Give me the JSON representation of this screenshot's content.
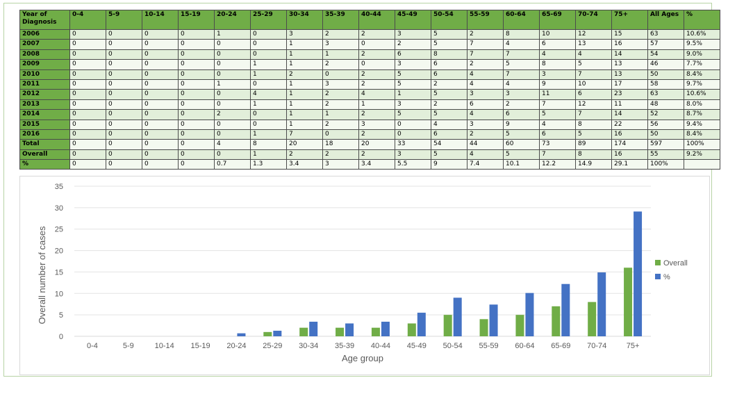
{
  "table": {
    "headers": [
      "Year of Diagnosis",
      "0-4",
      "5-9",
      "10-14",
      "15-19",
      "20-24",
      "25-29",
      "30-34",
      "35-39",
      "40-44",
      "45-49",
      "50-54",
      "55-59",
      "60-64",
      "65-69",
      "70-74",
      "75+",
      "All Ages",
      "%"
    ],
    "rows": [
      [
        "2006",
        "0",
        "0",
        "0",
        "0",
        "1",
        "0",
        "3",
        "2",
        "2",
        "3",
        "5",
        "2",
        "8",
        "10",
        "12",
        "15",
        "63",
        "10.6%"
      ],
      [
        "2007",
        "0",
        "0",
        "0",
        "0",
        "0",
        "0",
        "1",
        "3",
        "0",
        "2",
        "5",
        "7",
        "4",
        "6",
        "13",
        "16",
        "57",
        "9.5%"
      ],
      [
        "2008",
        "0",
        "0",
        "0",
        "0",
        "0",
        "0",
        "1",
        "1",
        "2",
        "6",
        "8",
        "7",
        "7",
        "4",
        "4",
        "14",
        "54",
        "9.0%"
      ],
      [
        "2009",
        "0",
        "0",
        "0",
        "0",
        "0",
        "1",
        "1",
        "2",
        "0",
        "3",
        "6",
        "2",
        "5",
        "8",
        "5",
        "13",
        "46",
        "7.7%"
      ],
      [
        "2010",
        "0",
        "0",
        "0",
        "0",
        "0",
        "1",
        "2",
        "0",
        "2",
        "5",
        "6",
        "4",
        "7",
        "3",
        "7",
        "13",
        "50",
        "8.4%"
      ],
      [
        "2011",
        "0",
        "0",
        "0",
        "0",
        "1",
        "0",
        "1",
        "3",
        "2",
        "5",
        "2",
        "4",
        "4",
        "9",
        "10",
        "17",
        "58",
        "9.7%"
      ],
      [
        "2012",
        "0",
        "0",
        "0",
        "0",
        "0",
        "4",
        "1",
        "2",
        "4",
        "1",
        "5",
        "3",
        "3",
        "11",
        "6",
        "23",
        "63",
        "10.6%"
      ],
      [
        "2013",
        "0",
        "0",
        "0",
        "0",
        "0",
        "1",
        "1",
        "2",
        "1",
        "3",
        "2",
        "6",
        "2",
        "7",
        "12",
        "11",
        "48",
        "8.0%"
      ],
      [
        "2014",
        "0",
        "0",
        "0",
        "0",
        "2",
        "0",
        "1",
        "1",
        "2",
        "5",
        "5",
        "4",
        "6",
        "5",
        "7",
        "14",
        "52",
        "8.7%"
      ],
      [
        "2015",
        "0",
        "0",
        "0",
        "0",
        "0",
        "0",
        "1",
        "2",
        "3",
        "0",
        "4",
        "3",
        "9",
        "4",
        "8",
        "22",
        "56",
        "9.4%"
      ],
      [
        "2016",
        "0",
        "0",
        "0",
        "0",
        "0",
        "1",
        "7",
        "0",
        "2",
        "0",
        "6",
        "2",
        "5",
        "6",
        "5",
        "16",
        "50",
        "8.4%"
      ],
      [
        "Total",
        "0",
        "0",
        "0",
        "0",
        "4",
        "8",
        "20",
        "18",
        "20",
        "33",
        "54",
        "44",
        "60",
        "73",
        "89",
        "174",
        "597",
        "100%"
      ],
      [
        "Overall",
        "0",
        "0",
        "0",
        "0",
        "0",
        "1",
        "2",
        "2",
        "2",
        "3",
        "5",
        "4",
        "5",
        "7",
        "8",
        "16",
        "55",
        "9.2%"
      ],
      [
        "%",
        "0",
        "0",
        "0",
        "0",
        "0.7",
        "1.3",
        "3.4",
        "3",
        "3.4",
        "5.5",
        "9",
        "7.4",
        "10.1",
        "12.2",
        "14.9",
        "29.1",
        "100%",
        ""
      ]
    ]
  },
  "chart_data": {
    "type": "bar",
    "categories": [
      "0-4",
      "5-9",
      "10-14",
      "15-19",
      "20-24",
      "25-29",
      "30-34",
      "35-39",
      "40-44",
      "45-49",
      "50-54",
      "55-59",
      "60-64",
      "65-69",
      "70-74",
      "75+"
    ],
    "series": [
      {
        "name": "Overall",
        "color": "#70ad47",
        "values": [
          0,
          0,
          0,
          0,
          0,
          1,
          2,
          2,
          2,
          3,
          5,
          4,
          5,
          7,
          8,
          16
        ]
      },
      {
        "name": "%",
        "color": "#4472c4",
        "values": [
          0,
          0,
          0,
          0,
          0.7,
          1.3,
          3.4,
          3,
          3.4,
          5.5,
          9,
          7.4,
          10.1,
          12.2,
          14.9,
          29.1
        ]
      }
    ],
    "xlabel": "Age group",
    "ylabel": "Overall number of cases",
    "ylim": [
      0,
      35
    ],
    "yticks": [
      0,
      5,
      10,
      15,
      20,
      25,
      30,
      35
    ],
    "grid": true,
    "legend": "right"
  }
}
